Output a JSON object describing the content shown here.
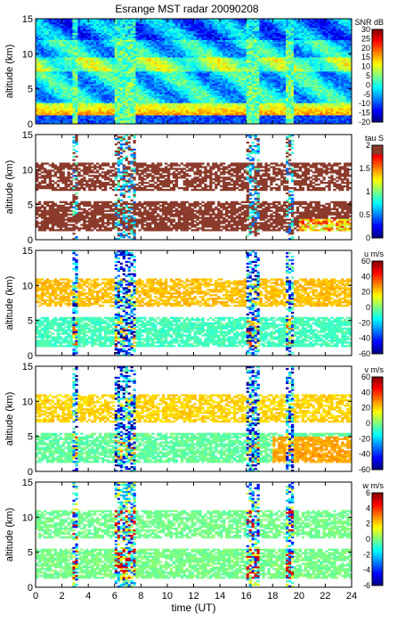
{
  "title": "Esrange MST radar 20090208",
  "chart_data": [
    {
      "type": "heatmap",
      "quantity": "SNR",
      "ylabel": "altitude (km)",
      "xlabel": "",
      "xlim": [
        0,
        24
      ],
      "ylim": [
        0,
        15
      ],
      "yticks": [
        0,
        5,
        10,
        15
      ],
      "xticks": [
        0,
        2,
        4,
        6,
        8,
        10,
        12,
        14,
        16,
        18,
        20,
        22,
        24
      ],
      "colorbar": {
        "label": "SNR dB",
        "min": -20,
        "max": 30,
        "ticks": [
          30,
          25,
          20,
          15,
          10,
          5,
          0,
          -5,
          -10,
          -15,
          -20
        ]
      }
    },
    {
      "type": "heatmap",
      "quantity": "tau",
      "ylabel": "altitude (km)",
      "xlabel": "",
      "xlim": [
        0,
        24
      ],
      "ylim": [
        0,
        15
      ],
      "yticks": [
        0,
        5,
        10,
        15
      ],
      "xticks": [
        0,
        2,
        4,
        6,
        8,
        10,
        12,
        14,
        16,
        18,
        20,
        22,
        24
      ],
      "colorbar": {
        "label": "tau S",
        "min": 0,
        "max": 2,
        "ticks": [
          2,
          1.5,
          1,
          0.5,
          0
        ]
      }
    },
    {
      "type": "heatmap",
      "quantity": "u",
      "ylabel": "altitude (km)",
      "xlabel": "",
      "xlim": [
        0,
        24
      ],
      "ylim": [
        0,
        15
      ],
      "yticks": [
        0,
        5,
        10,
        15
      ],
      "xticks": [
        0,
        2,
        4,
        6,
        8,
        10,
        12,
        14,
        16,
        18,
        20,
        22,
        24
      ],
      "colorbar": {
        "label": "u m/s",
        "min": -60,
        "max": 60,
        "ticks": [
          60,
          40,
          20,
          0,
          -20,
          -40,
          -60
        ]
      }
    },
    {
      "type": "heatmap",
      "quantity": "v",
      "ylabel": "altitude (km)",
      "xlabel": "",
      "xlim": [
        0,
        24
      ],
      "ylim": [
        0,
        15
      ],
      "yticks": [
        0,
        5,
        10,
        15
      ],
      "xticks": [
        0,
        2,
        4,
        6,
        8,
        10,
        12,
        14,
        16,
        18,
        20,
        22,
        24
      ],
      "colorbar": {
        "label": "v m/s",
        "min": -60,
        "max": 60,
        "ticks": [
          60,
          40,
          20,
          0,
          -20,
          -40,
          -60
        ]
      }
    },
    {
      "type": "heatmap",
      "quantity": "w",
      "ylabel": "altitude (km)",
      "xlabel": "time (UT)",
      "xlim": [
        0,
        24
      ],
      "ylim": [
        0,
        15
      ],
      "yticks": [
        0,
        5,
        10,
        15
      ],
      "xticks": [
        0,
        2,
        4,
        6,
        8,
        10,
        12,
        14,
        16,
        18,
        20,
        22,
        24
      ],
      "colorbar": {
        "label": "w m/s",
        "min": -6,
        "max": 6,
        "ticks": [
          6,
          4,
          2,
          0,
          -2,
          -4,
          -6
        ]
      }
    }
  ]
}
